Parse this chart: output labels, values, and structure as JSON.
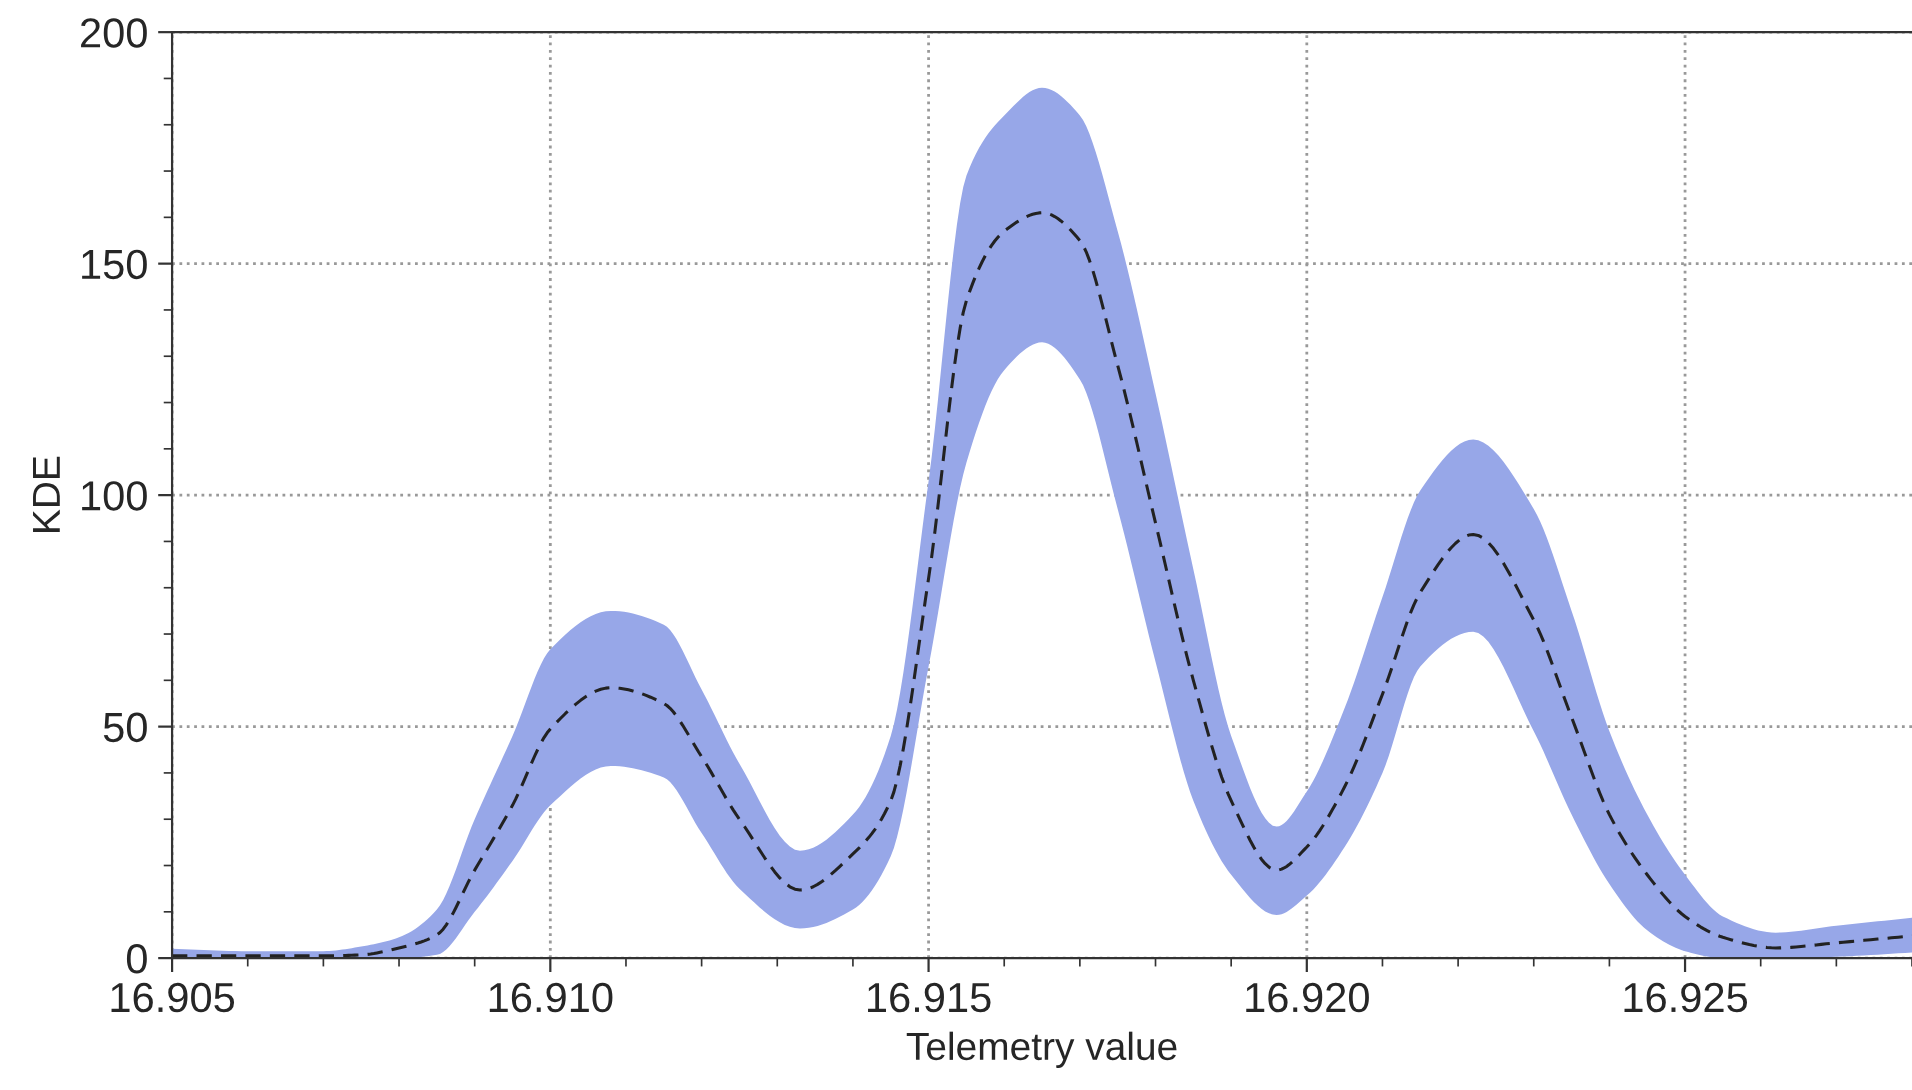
{
  "chart_data": {
    "type": "line",
    "xlabel": "Telemetry value",
    "ylabel": "KDE",
    "x": [
      16.905,
      16.906,
      16.907,
      16.9075,
      16.908,
      16.9085,
      16.909,
      16.9095,
      16.91,
      16.9108,
      16.9115,
      16.912,
      16.9125,
      16.9133,
      16.914,
      16.9145,
      16.915,
      16.9155,
      16.916,
      16.9165,
      16.917,
      16.9175,
      16.918,
      16.9185,
      16.919,
      16.9196,
      16.92,
      16.9205,
      16.921,
      16.9215,
      16.9222,
      16.923,
      16.9235,
      16.924,
      16.9245,
      16.925,
      16.9255,
      16.9262,
      16.927,
      16.928
    ],
    "series": [
      {
        "color": "#222222",
        "line_style": "dashed",
        "values": [
          0.5,
          0.5,
          0.5,
          0.7,
          2.2,
          5,
          19,
          33,
          49.5,
          58.4,
          55,
          43.5,
          30,
          14.7,
          22.5,
          34,
          82,
          142,
          157,
          161,
          155,
          128,
          94,
          60,
          34,
          19,
          24,
          37,
          57,
          79,
          91.5,
          73,
          52,
          31,
          18,
          9,
          4.5,
          2.2,
          3.3,
          4.8
        ],
        "lower": [
          0,
          0,
          0,
          0,
          0,
          0.7,
          10,
          21,
          33,
          41.5,
          39,
          27,
          15,
          6.4,
          10.5,
          22,
          63,
          107,
          127,
          133,
          125,
          97,
          64,
          34,
          18,
          9.3,
          13.5,
          24,
          40,
          63,
          70.5,
          49,
          31,
          16,
          6,
          1.5,
          0,
          0,
          0.3,
          1.2
        ],
        "upper": [
          2,
          1.5,
          1.5,
          2.5,
          4.5,
          10.5,
          30,
          48,
          66.7,
          75,
          72,
          58,
          42,
          23.2,
          31,
          48,
          103,
          169,
          182,
          188,
          182,
          157,
          122,
          84,
          48,
          28.4,
          36,
          54,
          78,
          101,
          112,
          97,
          75,
          49,
          31,
          18,
          9,
          5.5,
          7,
          8.7
        ]
      }
    ],
    "xlim": [
      16.905,
      16.928
    ],
    "xticks": [
      {
        "value": 16.905,
        "label": "16.905"
      },
      {
        "value": 16.91,
        "label": "16.910"
      },
      {
        "value": 16.915,
        "label": "16.915"
      },
      {
        "value": 16.92,
        "label": "16.920"
      },
      {
        "value": 16.925,
        "label": "16.925"
      }
    ],
    "ylim": [
      0,
      200
    ],
    "yticks": [
      0,
      50,
      100,
      150,
      200
    ],
    "grid": true
  }
}
